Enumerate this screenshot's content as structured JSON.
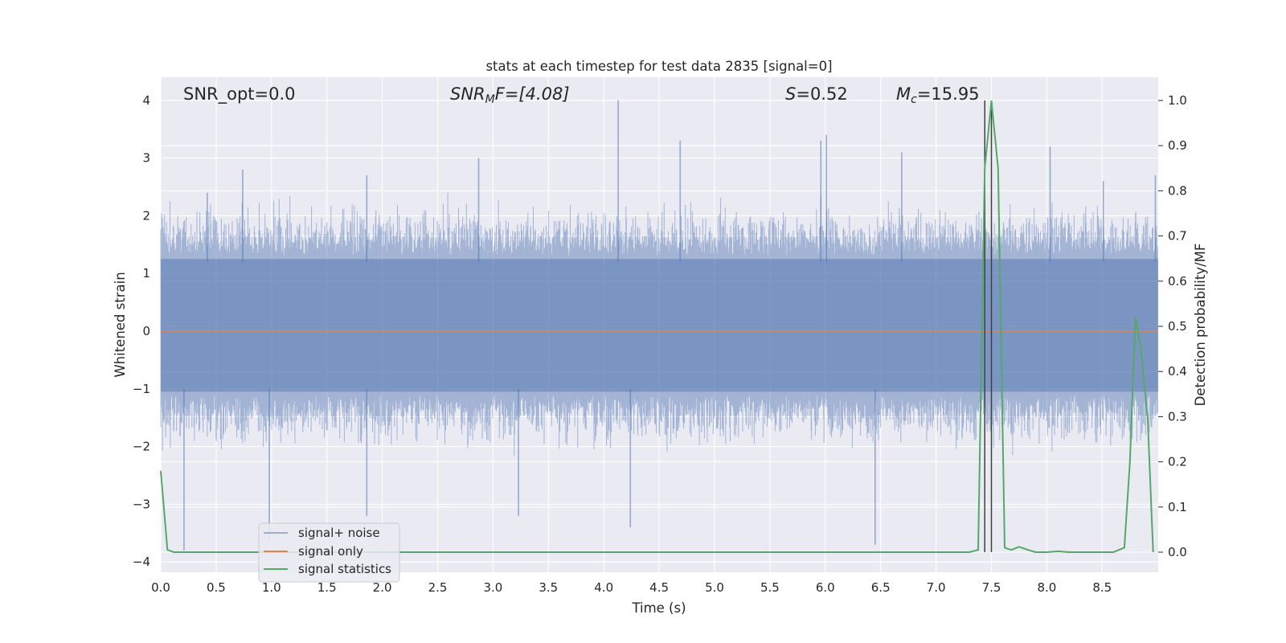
{
  "chart_data": {
    "type": "line",
    "title": "stats at each timestep for test data 2835 [signal=0]",
    "xlabel": "Time (s)",
    "ylabel": "Whitened strain",
    "ylabel_right": "Detection probability/MF",
    "xlim": [
      0.0,
      9.0
    ],
    "ylim": [
      -4.2,
      4.4
    ],
    "ylim_right": [
      -0.045,
      1.045
    ],
    "x_ticks": [
      "0.0",
      "0.5",
      "1.0",
      "1.5",
      "2.0",
      "2.5",
      "3.0",
      "3.5",
      "4.0",
      "4.5",
      "5.0",
      "5.5",
      "6.0",
      "6.5",
      "7.0",
      "7.5",
      "8.0",
      "8.5"
    ],
    "y_ticks": [
      "4",
      "3",
      "2",
      "1",
      "0",
      "−1",
      "−2",
      "−3",
      "−4"
    ],
    "y_ticks_right": [
      "1.0",
      "0.9",
      "0.8",
      "0.7",
      "0.6",
      "0.5",
      "0.4",
      "0.3",
      "0.2",
      "0.1",
      "0.0"
    ],
    "grid": true,
    "annotations": {
      "snr_opt": "SNR_opt=0.0",
      "snr_mf_main": "SNR",
      "snr_mf_sub": "M",
      "snr_mf_rest": "F=[4.08]",
      "s_main": "S",
      "s_rest": "=0.52",
      "mc_main": "M",
      "mc_sub": "c",
      "mc_rest": "=15.95"
    },
    "legend": {
      "position": "lower-left",
      "entries": [
        "signal+ noise",
        "signal only",
        "signal statistics"
      ]
    },
    "series": [
      {
        "name": "signal+ noise",
        "axis": "left",
        "color": "#4c72b0",
        "style": "dense noise band between about -1.5 and 1.7, spikes up to 4.0 and down to -3.8",
        "spikes": [
          [
            0.21,
            -3.8
          ],
          [
            0.42,
            2.4
          ],
          [
            0.74,
            2.8
          ],
          [
            0.98,
            -3.6
          ],
          [
            1.86,
            2.7
          ],
          [
            1.86,
            -3.2
          ],
          [
            2.87,
            3.0
          ],
          [
            3.23,
            -3.2
          ],
          [
            4.13,
            4.0
          ],
          [
            4.24,
            -3.4
          ],
          [
            4.69,
            3.3
          ],
          [
            5.96,
            3.3
          ],
          [
            6.01,
            3.4
          ],
          [
            6.45,
            -3.7
          ],
          [
            6.69,
            3.1
          ],
          [
            8.03,
            3.2
          ],
          [
            8.51,
            2.6
          ],
          [
            8.98,
            2.7
          ]
        ]
      },
      {
        "name": "signal only",
        "axis": "left",
        "color": "#dd8452",
        "x": [
          0.0,
          9.0
        ],
        "y": [
          0.0,
          0.0
        ]
      },
      {
        "name": "signal statistics",
        "axis": "right",
        "color": "#55a868",
        "x": [
          0.0,
          0.06,
          0.12,
          0.25,
          0.5,
          1.0,
          2.0,
          3.0,
          4.0,
          5.0,
          6.0,
          7.0,
          7.3,
          7.38,
          7.44,
          7.5,
          7.56,
          7.62,
          7.68,
          7.75,
          7.83,
          7.9,
          8.0,
          8.1,
          8.2,
          8.4,
          8.6,
          8.7,
          8.75,
          8.8,
          8.85,
          8.91,
          8.96
        ],
        "y": [
          0.18,
          0.005,
          0.0,
          0.0,
          0.0,
          0.0,
          0.0,
          0.0,
          0.0,
          0.0,
          0.0,
          0.0,
          0.0,
          0.005,
          0.85,
          1.0,
          0.85,
          0.01,
          0.005,
          0.012,
          0.005,
          0.0,
          0.0,
          0.002,
          0.0,
          0.0,
          0.0,
          0.01,
          0.2,
          0.52,
          0.45,
          0.3,
          0.0
        ]
      }
    ],
    "vlines": [
      {
        "x": 7.44,
        "color": "#404040"
      },
      {
        "x": 7.5,
        "color": "#404040"
      }
    ]
  }
}
